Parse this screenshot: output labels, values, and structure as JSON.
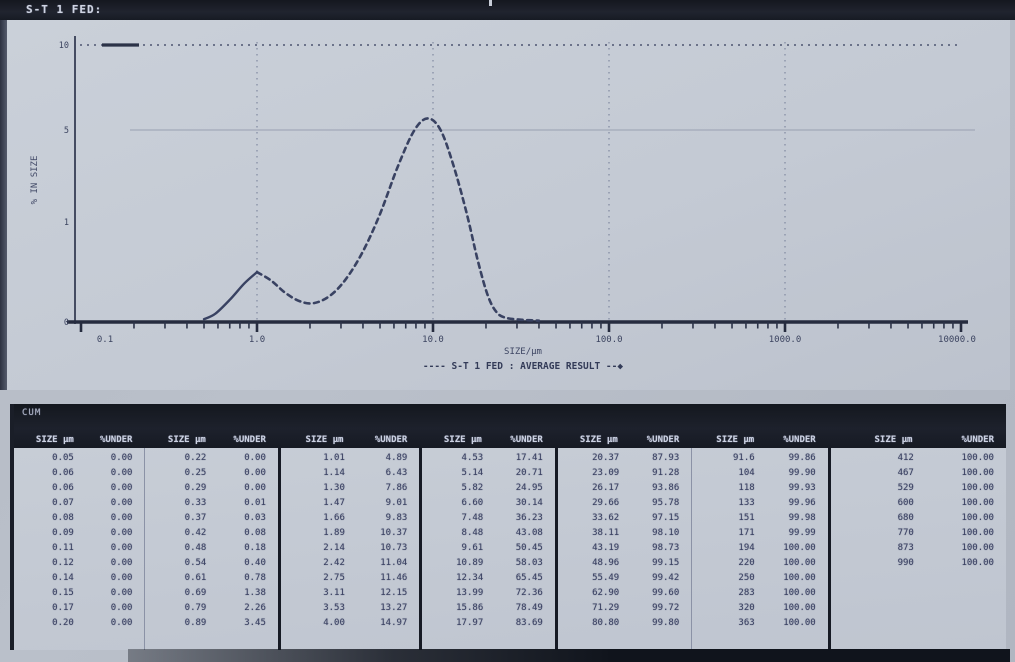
{
  "title_bar": {
    "label": "S-T 1 FED:"
  },
  "chart": {
    "y_axis_label": "% IN SIZE",
    "y_ticks": [
      "10",
      "5",
      "1",
      "0"
    ],
    "x_ticks": [
      "0.1",
      "1.0",
      "10.0",
      "100.0",
      "1000.0",
      "10000.0"
    ],
    "x_caption": "SIZE/µm",
    "legend": "---- S-T 1 FED : AVERAGE RESULT --◆"
  },
  "chart_data": {
    "type": "line",
    "title": "S-T 1 FED:",
    "xlabel": "SIZE/µm",
    "ylabel": "% IN SIZE",
    "x_scale": "log",
    "xlim": [
      0.1,
      10000
    ],
    "ylim": [
      0,
      10
    ],
    "grid": true,
    "line_style": "dashed",
    "legend_position": "bottom",
    "series": [
      {
        "name": "AVERAGE RESULT",
        "points_um_pct": [
          [
            0.5,
            0.1
          ],
          [
            0.58,
            0.3
          ],
          [
            0.7,
            0.8
          ],
          [
            0.85,
            1.4
          ],
          [
            1.0,
            1.8
          ],
          [
            1.2,
            1.5
          ],
          [
            1.45,
            1.05
          ],
          [
            1.75,
            0.75
          ],
          [
            2.1,
            0.68
          ],
          [
            2.6,
            0.95
          ],
          [
            3.2,
            1.55
          ],
          [
            4.0,
            2.55
          ],
          [
            5.0,
            3.9
          ],
          [
            6.3,
            5.6
          ],
          [
            7.8,
            6.9
          ],
          [
            9.3,
            7.35
          ],
          [
            11.0,
            6.95
          ],
          [
            13.0,
            5.7
          ],
          [
            15.5,
            3.95
          ],
          [
            18.0,
            2.2
          ],
          [
            20.5,
            0.95
          ],
          [
            23.0,
            0.35
          ],
          [
            26.0,
            0.15
          ],
          [
            32.0,
            0.08
          ],
          [
            40.0,
            0.05
          ]
        ]
      }
    ]
  },
  "table": {
    "title": "CUM",
    "column_headers": [
      "SIZE µm",
      "%UNDER"
    ],
    "groups": [
      {
        "rows": [
          [
            "0.05",
            "0.00"
          ],
          [
            "0.06",
            "0.00"
          ],
          [
            "0.06",
            "0.00"
          ],
          [
            "0.07",
            "0.00"
          ],
          [
            "0.08",
            "0.00"
          ],
          [
            "0.09",
            "0.00"
          ],
          [
            "0.11",
            "0.00"
          ],
          [
            "0.12",
            "0.00"
          ],
          [
            "0.14",
            "0.00"
          ],
          [
            "0.15",
            "0.00"
          ],
          [
            "0.17",
            "0.00"
          ],
          [
            "0.20",
            "0.00"
          ]
        ]
      },
      {
        "rows": [
          [
            "0.22",
            "0.00"
          ],
          [
            "0.25",
            "0.00"
          ],
          [
            "0.29",
            "0.00"
          ],
          [
            "0.33",
            "0.01"
          ],
          [
            "0.37",
            "0.03"
          ],
          [
            "0.42",
            "0.08"
          ],
          [
            "0.48",
            "0.18"
          ],
          [
            "0.54",
            "0.40"
          ],
          [
            "0.61",
            "0.78"
          ],
          [
            "0.69",
            "1.38"
          ],
          [
            "0.79",
            "2.26"
          ],
          [
            "0.89",
            "3.45"
          ]
        ]
      },
      {
        "rows": [
          [
            "1.01",
            "4.89"
          ],
          [
            "1.14",
            "6.43"
          ],
          [
            "1.30",
            "7.86"
          ],
          [
            "1.47",
            "9.01"
          ],
          [
            "1.66",
            "9.83"
          ],
          [
            "1.89",
            "10.37"
          ],
          [
            "2.14",
            "10.73"
          ],
          [
            "2.42",
            "11.04"
          ],
          [
            "2.75",
            "11.46"
          ],
          [
            "3.11",
            "12.15"
          ],
          [
            "3.53",
            "13.27"
          ],
          [
            "4.00",
            "14.97"
          ]
        ]
      },
      {
        "rows": [
          [
            "4.53",
            "17.41"
          ],
          [
            "5.14",
            "20.71"
          ],
          [
            "5.82",
            "24.95"
          ],
          [
            "6.60",
            "30.14"
          ],
          [
            "7.48",
            "36.23"
          ],
          [
            "8.48",
            "43.08"
          ],
          [
            "9.61",
            "50.45"
          ],
          [
            "10.89",
            "58.03"
          ],
          [
            "12.34",
            "65.45"
          ],
          [
            "13.99",
            "72.36"
          ],
          [
            "15.86",
            "78.49"
          ],
          [
            "17.97",
            "83.69"
          ]
        ]
      },
      {
        "rows": [
          [
            "20.37",
            "87.93"
          ],
          [
            "23.09",
            "91.28"
          ],
          [
            "26.17",
            "93.86"
          ],
          [
            "29.66",
            "95.78"
          ],
          [
            "33.62",
            "97.15"
          ],
          [
            "38.11",
            "98.10"
          ],
          [
            "43.19",
            "98.73"
          ],
          [
            "48.96",
            "99.15"
          ],
          [
            "55.49",
            "99.42"
          ],
          [
            "62.90",
            "99.60"
          ],
          [
            "71.29",
            "99.72"
          ],
          [
            "80.80",
            "99.80"
          ]
        ]
      },
      {
        "rows": [
          [
            "91.6",
            "99.86"
          ],
          [
            "104",
            "99.90"
          ],
          [
            "118",
            "99.93"
          ],
          [
            "133",
            "99.96"
          ],
          [
            "151",
            "99.98"
          ],
          [
            "171",
            "99.99"
          ],
          [
            "194",
            "100.00"
          ],
          [
            "220",
            "100.00"
          ],
          [
            "250",
            "100.00"
          ],
          [
            "283",
            "100.00"
          ],
          [
            "320",
            "100.00"
          ],
          [
            "363",
            "100.00"
          ]
        ]
      },
      {
        "rows": [
          [
            "412",
            "100.00"
          ],
          [
            "467",
            "100.00"
          ],
          [
            "529",
            "100.00"
          ],
          [
            "600",
            "100.00"
          ],
          [
            "680",
            "100.00"
          ],
          [
            "770",
            "100.00"
          ],
          [
            "873",
            "100.00"
          ],
          [
            "990",
            "100.00"
          ]
        ]
      }
    ]
  },
  "colors": {
    "paper": "#c6ccd5",
    "ink": "#39415c",
    "bar_black": "#171b24",
    "grid": "#7e87a0"
  }
}
